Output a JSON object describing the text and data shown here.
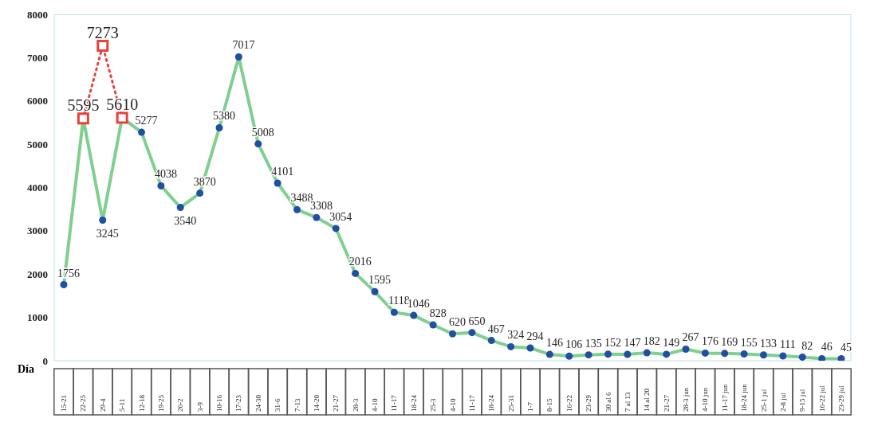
{
  "chart_data": {
    "type": "line",
    "xlabel": "Día",
    "categories": [
      "15-21",
      "22-25",
      "29-4",
      "5-11",
      "12-18",
      "19-25",
      "26-2",
      "3-9",
      "10-16",
      "17-23",
      "24-30",
      "31-6",
      "7-13",
      "14-20",
      "21-27",
      "28-3",
      "4-10",
      "11-17",
      "18-24",
      "25-3",
      "4-10",
      "11-17",
      "18-24",
      "25-31",
      "1-7",
      "8-15",
      "16-22",
      "23-29",
      "30 al 6",
      "7 al 13",
      "14 al 20",
      "21-27",
      "28-3 jun",
      "4-10 jun",
      "11-17 jun",
      "18-24 jun",
      "25-1 jul",
      "2-8 jul",
      "9-15 jul",
      "16-22 jul",
      "23-29 jul"
    ],
    "series": [
      {
        "color": "#7fcf8f",
        "marker": "circle",
        "line_style": "solid",
        "values": [
          1756,
          5595,
          3245,
          5610,
          5277,
          4038,
          3540,
          3870,
          5380,
          7017,
          5008,
          4101,
          3488,
          3308,
          3054,
          2016,
          1595,
          1118,
          1046,
          828,
          620,
          650,
          467,
          324,
          294,
          146,
          106,
          135,
          152,
          147,
          182,
          149,
          267,
          176,
          169,
          155,
          133,
          111,
          82,
          46,
          45
        ],
        "value_labels": [
          "1756",
          null,
          "3245",
          null,
          "5277",
          "4038",
          "3540",
          "3870",
          "5380",
          "7017",
          "5008",
          "4101",
          "3488",
          "3308",
          "3054",
          "2016",
          "1595",
          "1118",
          "1046",
          "828",
          "620",
          "650",
          "467",
          "324",
          "294",
          "146",
          "106",
          "135",
          "152",
          "147",
          "182",
          "149",
          "267",
          "176",
          "169",
          "155",
          "133",
          "111",
          "82",
          "46",
          "45"
        ]
      },
      {
        "color": "#e8403a",
        "marker": "square",
        "line_style": "dotted",
        "values": [
          null,
          5595,
          7273,
          5610,
          null,
          null,
          null,
          null,
          null,
          null,
          null,
          null,
          null,
          null,
          null,
          null,
          null,
          null,
          null,
          null,
          null,
          null,
          null,
          null,
          null,
          null,
          null,
          null,
          null,
          null,
          null,
          null,
          null,
          null,
          null,
          null,
          null,
          null,
          null,
          null,
          null
        ],
        "value_labels": [
          null,
          "5595",
          "7273",
          "5610",
          null,
          null,
          null,
          null,
          null,
          null,
          null,
          null,
          null,
          null,
          null,
          null,
          null,
          null,
          null,
          null,
          null,
          null,
          null,
          null,
          null,
          null,
          null,
          null,
          null,
          null,
          null,
          null,
          null,
          null,
          null,
          null,
          null,
          null,
          null,
          null,
          null
        ]
      }
    ],
    "ylim": [
      0,
      8000
    ],
    "yticks": [
      0,
      1000,
      2000,
      3000,
      4000,
      5000,
      6000,
      7000,
      8000
    ],
    "grid": false,
    "legend": false
  }
}
